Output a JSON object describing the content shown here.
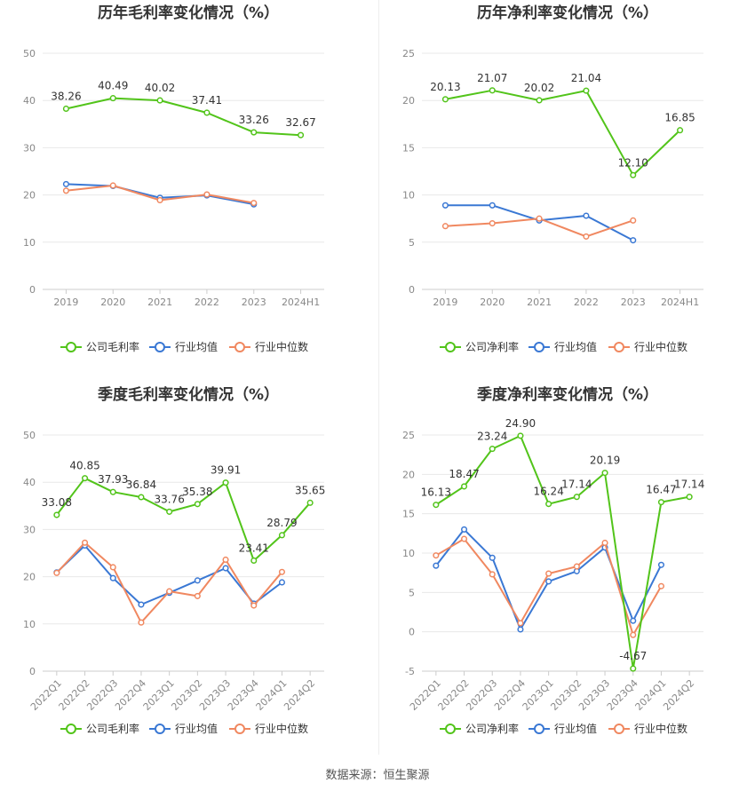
{
  "source_label": "数据来源：恒生聚源",
  "colors": {
    "company": "#52c41a",
    "industry_avg": "#3a78d4",
    "industry_median": "#f08860",
    "grid": "#e8e8e8",
    "axis": "#cccccc"
  },
  "chart_data": [
    {
      "type": "line",
      "title": "历年毛利率变化情况（%）",
      "categories": [
        "2019",
        "2020",
        "2021",
        "2022",
        "2023",
        "2024H1"
      ],
      "ylim": [
        0,
        50
      ],
      "yticks": [
        0,
        10,
        20,
        30,
        40,
        50
      ],
      "rotate_x": false,
      "series": [
        {
          "name": "公司毛利率",
          "key": "company",
          "values": [
            38.26,
            40.49,
            40.02,
            37.41,
            33.26,
            32.67
          ],
          "labels": [
            "38.26",
            "40.49",
            "40.02",
            "37.41",
            "33.26",
            "32.67"
          ]
        },
        {
          "name": "行业均值",
          "key": "industry_avg",
          "values": [
            22.3,
            21.9,
            19.4,
            19.9,
            18.0,
            null
          ]
        },
        {
          "name": "行业中位数",
          "key": "industry_median",
          "values": [
            20.9,
            22.0,
            18.9,
            20.1,
            18.3,
            null
          ]
        }
      ]
    },
    {
      "type": "line",
      "title": "历年净利率变化情况（%）",
      "categories": [
        "2019",
        "2020",
        "2021",
        "2022",
        "2023",
        "2024H1"
      ],
      "ylim": [
        0,
        25
      ],
      "yticks": [
        0,
        5,
        10,
        15,
        20,
        25
      ],
      "rotate_x": false,
      "series": [
        {
          "name": "公司净利率",
          "key": "company",
          "values": [
            20.13,
            21.07,
            20.02,
            21.04,
            12.1,
            16.85
          ],
          "labels": [
            "20.13",
            "21.07",
            "20.02",
            "21.04",
            "12.10",
            "16.85"
          ]
        },
        {
          "name": "行业均值",
          "key": "industry_avg",
          "values": [
            8.9,
            8.9,
            7.3,
            7.8,
            5.2,
            null
          ]
        },
        {
          "name": "行业中位数",
          "key": "industry_median",
          "values": [
            6.7,
            7.0,
            7.5,
            5.6,
            7.3,
            null
          ]
        }
      ]
    },
    {
      "type": "line",
      "title": "季度毛利率变化情况（%）",
      "categories": [
        "2022Q1",
        "2022Q2",
        "2022Q3",
        "2022Q4",
        "2023Q1",
        "2023Q2",
        "2023Q3",
        "2023Q4",
        "2024Q1",
        "2024Q2"
      ],
      "ylim": [
        0,
        50
      ],
      "yticks": [
        0,
        10,
        20,
        30,
        40,
        50
      ],
      "rotate_x": true,
      "series": [
        {
          "name": "公司毛利率",
          "key": "company",
          "values": [
            33.08,
            40.85,
            37.93,
            36.84,
            33.76,
            35.38,
            39.91,
            23.41,
            28.79,
            35.65
          ],
          "labels": [
            "33.08",
            "40.85",
            "37.93",
            "36.84",
            "33.76",
            "35.38",
            "39.91",
            "23.41",
            "28.79",
            "35.65"
          ]
        },
        {
          "name": "行业均值",
          "key": "industry_avg",
          "values": [
            20.9,
            26.6,
            19.7,
            14.1,
            16.6,
            19.2,
            21.8,
            14.3,
            18.8,
            null
          ]
        },
        {
          "name": "行业中位数",
          "key": "industry_median",
          "values": [
            20.8,
            27.2,
            22.0,
            10.3,
            16.9,
            15.9,
            23.6,
            13.9,
            21.0,
            null
          ]
        }
      ]
    },
    {
      "type": "line",
      "title": "季度净利率变化情况（%）",
      "categories": [
        "2022Q1",
        "2022Q2",
        "2022Q3",
        "2022Q4",
        "2023Q1",
        "2023Q2",
        "2023Q3",
        "2023Q4",
        "2024Q1",
        "2024Q2"
      ],
      "ylim": [
        -5,
        25
      ],
      "yticks": [
        -5,
        0,
        5,
        10,
        15,
        20,
        25
      ],
      "rotate_x": true,
      "series": [
        {
          "name": "公司净利率",
          "key": "company",
          "values": [
            16.13,
            18.47,
            23.24,
            24.9,
            16.24,
            17.14,
            20.19,
            -4.67,
            16.47,
            17.14
          ],
          "labels": [
            "16.13",
            "18.47",
            "23.24",
            "24.90",
            "16.24",
            "17.14",
            "20.19",
            "-4.67",
            "16.47",
            "17.14"
          ]
        },
        {
          "name": "行业均值",
          "key": "industry_avg",
          "values": [
            8.4,
            13.0,
            9.4,
            0.3,
            6.4,
            7.7,
            10.7,
            1.4,
            8.5,
            null
          ]
        },
        {
          "name": "行业中位数",
          "key": "industry_median",
          "values": [
            9.7,
            11.8,
            7.3,
            1.1,
            7.4,
            8.3,
            11.3,
            -0.4,
            5.8,
            null
          ]
        }
      ]
    }
  ]
}
